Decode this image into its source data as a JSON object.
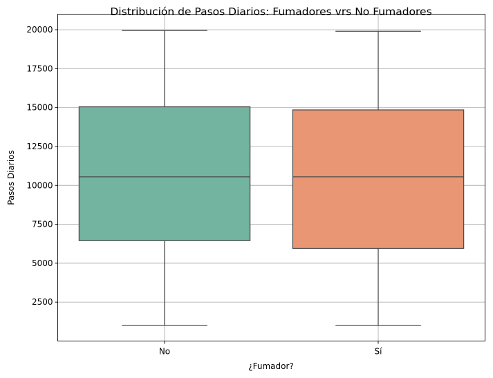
{
  "chart_data": {
    "type": "box",
    "title": "Distribución de Pasos Diarios: Fumadores vrs No Fumadores",
    "xlabel": "¿Fumador?",
    "ylabel": "Pasos Diarios",
    "categories": [
      "No",
      "Sí"
    ],
    "ylim": [
      0,
      21000
    ],
    "yticks": [
      2500,
      5000,
      7500,
      10000,
      12500,
      15000,
      17500,
      20000
    ],
    "grid": true,
    "boxes": [
      {
        "category": "No",
        "min": 1000,
        "q1": 6450,
        "median": 10550,
        "q3": 15050,
        "max": 19950,
        "color": "#73b4a1"
      },
      {
        "category": "Sí",
        "min": 1000,
        "q1": 5950,
        "median": 10550,
        "q3": 14850,
        "max": 19900,
        "color": "#e99675"
      }
    ]
  }
}
